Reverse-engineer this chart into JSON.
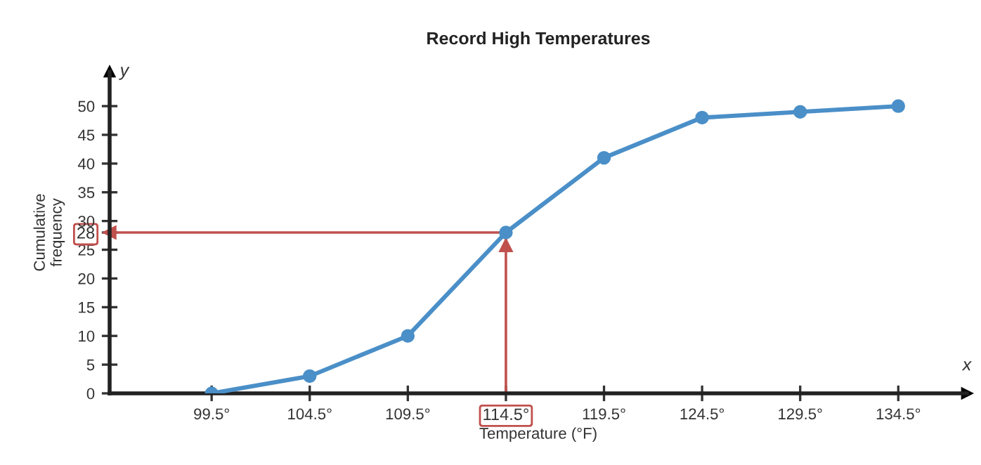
{
  "chart_data": {
    "type": "line",
    "title": "Record High Temperatures",
    "xlabel": "Temperature (°F)",
    "ylabel": "Cumulative\nfrequency",
    "x": [
      99.5,
      104.5,
      109.5,
      114.5,
      119.5,
      124.5,
      129.5,
      134.5
    ],
    "series": [
      {
        "color": "#4a8fc8",
        "values": [
          0,
          3,
          10,
          28,
          41,
          48,
          49,
          50
        ]
      }
    ],
    "marker": "circle",
    "line_style": "solid",
    "xlim": [
      94.3,
      138
    ],
    "ylim": [
      0,
      56
    ],
    "xticks": [
      {
        "value": 99.5,
        "label": "99.5°"
      },
      {
        "value": 104.5,
        "label": "104.5°"
      },
      {
        "value": 109.5,
        "label": "109.5°"
      },
      {
        "value": 114.5,
        "label": "114.5°"
      },
      {
        "value": 119.5,
        "label": "119.5°"
      },
      {
        "value": 124.5,
        "label": "124.5°"
      },
      {
        "value": 129.5,
        "label": "129.5°"
      },
      {
        "value": 134.5,
        "label": "134.5°"
      }
    ],
    "yticks": [
      0,
      5,
      10,
      15,
      20,
      25,
      28,
      30,
      35,
      40,
      45,
      50
    ],
    "ref_lines": [
      {
        "axis": "y",
        "value": 28,
        "color": "#c0504d"
      },
      {
        "axis": "x",
        "value": 114.5,
        "color": "#c0504d"
      }
    ],
    "annotations": [
      "y",
      "x"
    ],
    "grid": false,
    "legend": false
  }
}
